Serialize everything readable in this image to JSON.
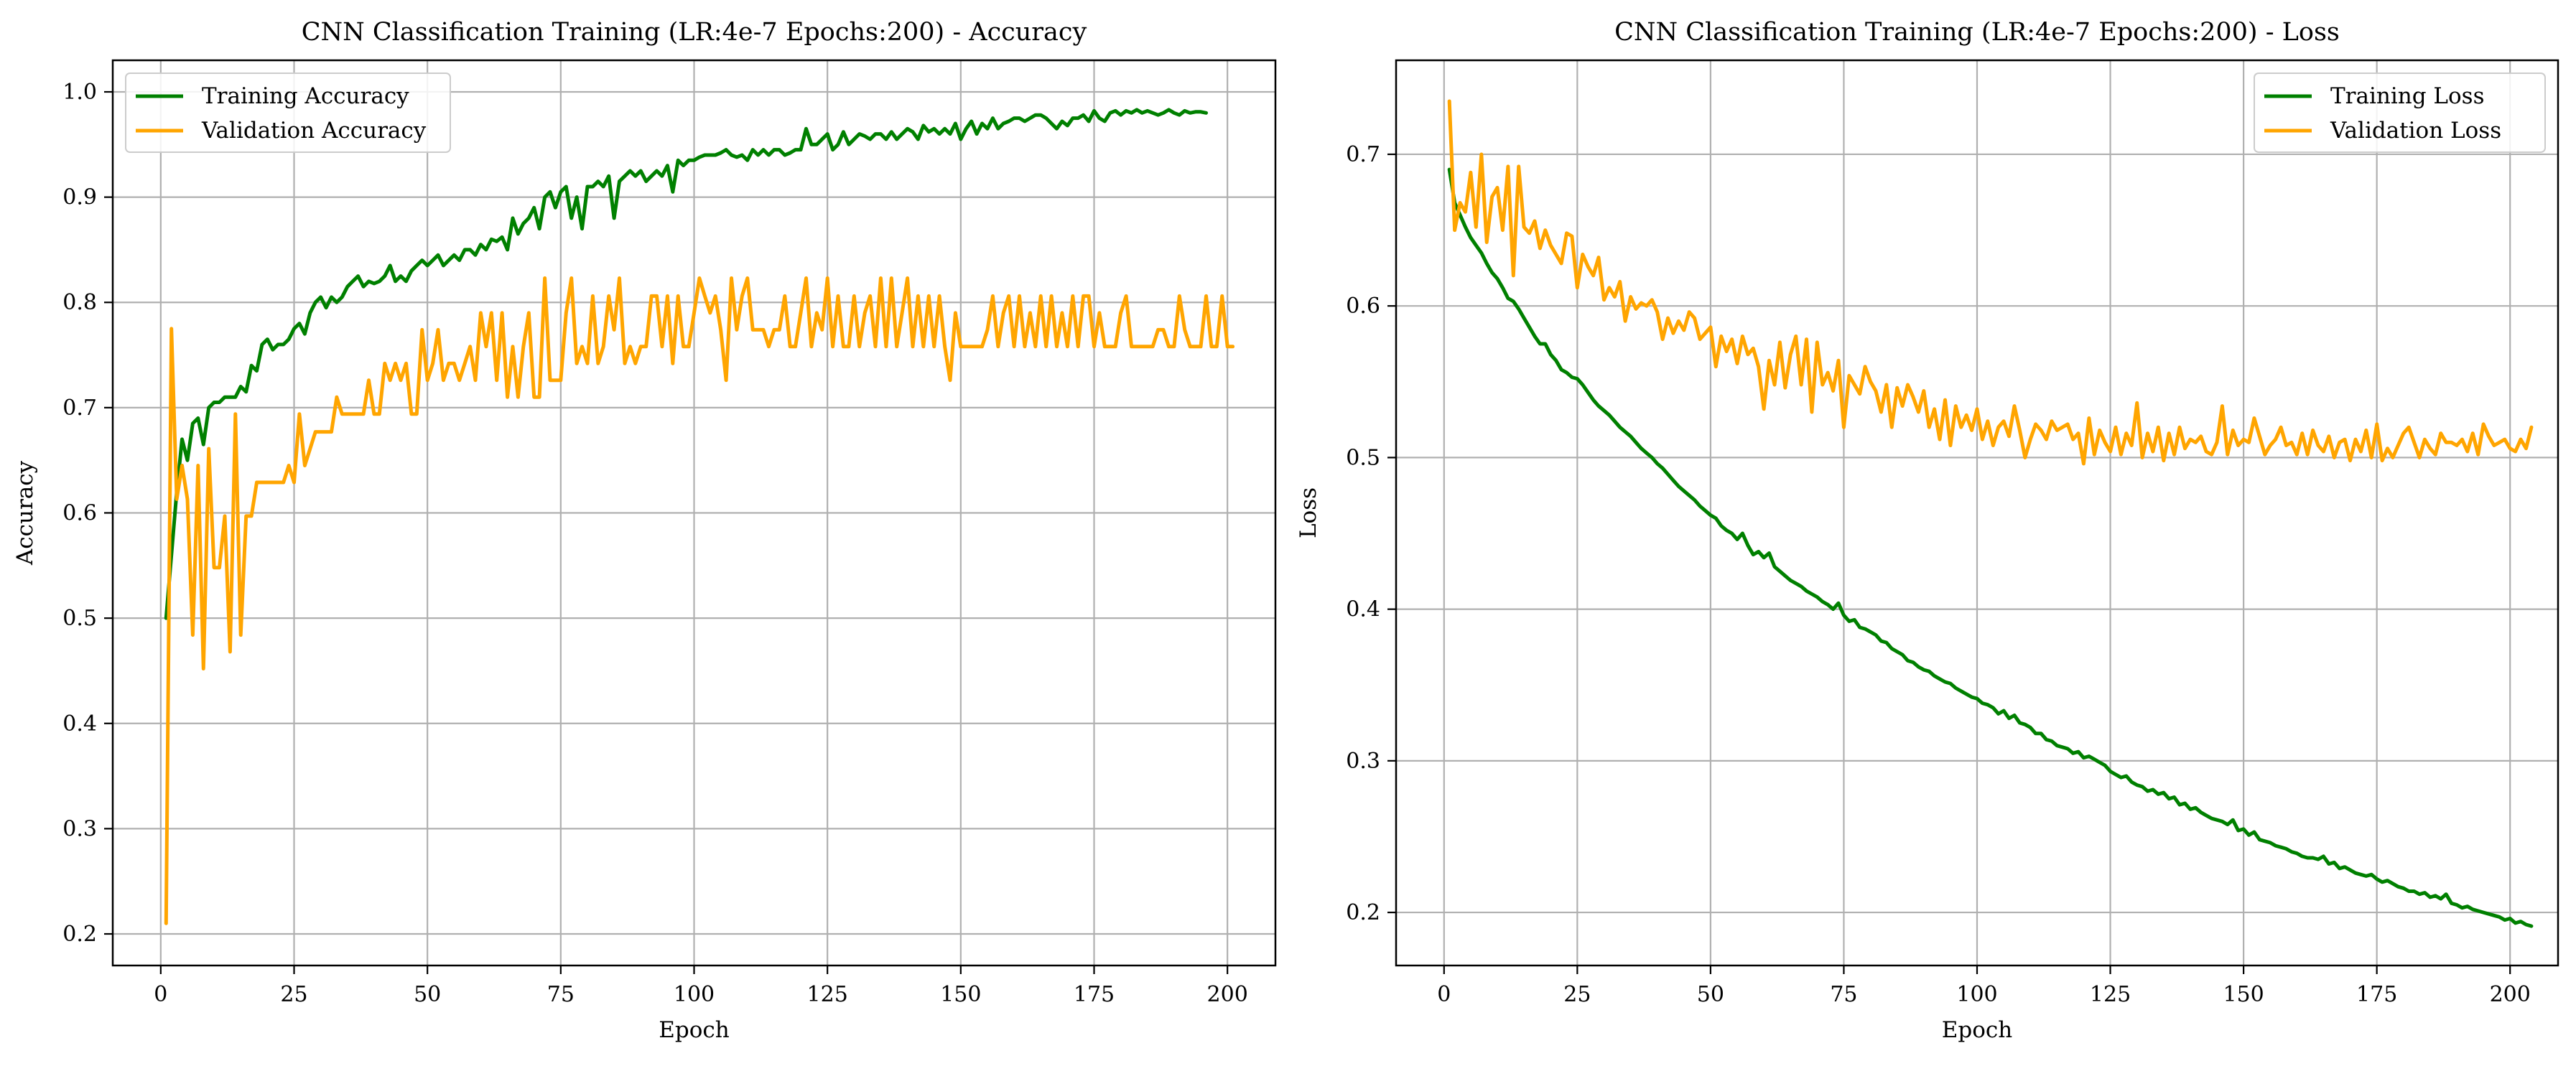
{
  "colors": {
    "training": "#008000",
    "validation": "#ffa500",
    "grid": "#b0b0b0",
    "axes": "#000000",
    "background": "#ffffff"
  },
  "chart_data": [
    {
      "type": "line",
      "title": "CNN Classification Training (LR:4e-7 Epochs:200) - Accuracy",
      "xlabel": "Epoch",
      "ylabel": "Accuracy",
      "xlim": [
        -9,
        209
      ],
      "ylim": [
        0.17,
        1.03
      ],
      "xticks": [
        0,
        25,
        50,
        75,
        100,
        125,
        150,
        175,
        200
      ],
      "yticks": [
        0.2,
        0.3,
        0.4,
        0.5,
        0.6,
        0.7,
        0.8,
        0.9,
        1.0
      ],
      "ytick_labels": [
        "0.2",
        "0.3",
        "0.4",
        "0.5",
        "0.6",
        "0.7",
        "0.8",
        "0.9",
        "1.0"
      ],
      "grid": true,
      "legend_position": "upper-left",
      "series": [
        {
          "name": "Training Accuracy",
          "color": "#008000",
          "x_start": 1,
          "values": [
            0.5,
            0.56,
            0.62,
            0.67,
            0.65,
            0.685,
            0.69,
            0.665,
            0.7,
            0.705,
            0.705,
            0.71,
            0.71,
            0.71,
            0.72,
            0.715,
            0.74,
            0.735,
            0.76,
            0.765,
            0.755,
            0.76,
            0.76,
            0.765,
            0.775,
            0.78,
            0.77,
            0.79,
            0.8,
            0.805,
            0.795,
            0.805,
            0.8,
            0.805,
            0.815,
            0.82,
            0.825,
            0.815,
            0.82,
            0.818,
            0.82,
            0.825,
            0.835,
            0.82,
            0.825,
            0.82,
            0.83,
            0.835,
            0.84,
            0.835,
            0.84,
            0.845,
            0.835,
            0.84,
            0.845,
            0.84,
            0.85,
            0.85,
            0.845,
            0.855,
            0.85,
            0.86,
            0.858,
            0.862,
            0.85,
            0.88,
            0.865,
            0.875,
            0.88,
            0.89,
            0.87,
            0.9,
            0.905,
            0.89,
            0.905,
            0.91,
            0.88,
            0.9,
            0.87,
            0.91,
            0.91,
            0.915,
            0.91,
            0.92,
            0.88,
            0.915,
            0.92,
            0.925,
            0.92,
            0.925,
            0.915,
            0.92,
            0.925,
            0.92,
            0.93,
            0.905,
            0.935,
            0.93,
            0.935,
            0.935,
            0.938,
            0.94,
            0.94,
            0.94,
            0.942,
            0.945,
            0.94,
            0.938,
            0.94,
            0.935,
            0.945,
            0.94,
            0.945,
            0.94,
            0.945,
            0.945,
            0.94,
            0.942,
            0.945,
            0.945,
            0.965,
            0.95,
            0.95,
            0.955,
            0.96,
            0.945,
            0.95,
            0.962,
            0.95,
            0.955,
            0.96,
            0.958,
            0.955,
            0.96,
            0.96,
            0.955,
            0.962,
            0.955,
            0.96,
            0.965,
            0.962,
            0.955,
            0.968,
            0.962,
            0.965,
            0.96,
            0.965,
            0.96,
            0.97,
            0.955,
            0.965,
            0.972,
            0.96,
            0.97,
            0.965,
            0.975,
            0.965,
            0.97,
            0.972,
            0.975,
            0.975,
            0.972,
            0.975,
            0.978,
            0.978,
            0.975,
            0.97,
            0.965,
            0.972,
            0.968,
            0.975,
            0.975,
            0.978,
            0.972,
            0.982,
            0.975,
            0.972,
            0.98,
            0.982,
            0.978,
            0.982,
            0.98,
            0.983,
            0.98,
            0.982,
            0.98,
            0.978,
            0.98,
            0.983,
            0.98,
            0.978,
            0.982,
            0.98,
            0.981,
            0.981,
            0.98
          ]
        },
        {
          "name": "Validation Accuracy",
          "color": "#ffa500",
          "x_start": 1,
          "values": [
            0.21,
            0.775,
            0.613,
            0.645,
            0.613,
            0.484,
            0.645,
            0.452,
            0.661,
            0.548,
            0.548,
            0.597,
            0.468,
            0.694,
            0.484,
            0.597,
            0.597,
            0.629,
            0.629,
            0.629,
            0.629,
            0.629,
            0.629,
            0.645,
            0.629,
            0.694,
            0.645,
            0.661,
            0.677,
            0.677,
            0.677,
            0.677,
            0.71,
            0.694,
            0.694,
            0.694,
            0.694,
            0.694,
            0.726,
            0.694,
            0.694,
            0.742,
            0.726,
            0.742,
            0.726,
            0.742,
            0.694,
            0.694,
            0.774,
            0.726,
            0.742,
            0.774,
            0.726,
            0.742,
            0.742,
            0.726,
            0.742,
            0.758,
            0.726,
            0.79,
            0.758,
            0.79,
            0.726,
            0.79,
            0.71,
            0.758,
            0.71,
            0.758,
            0.79,
            0.71,
            0.71,
            0.823,
            0.726,
            0.726,
            0.726,
            0.79,
            0.823,
            0.742,
            0.758,
            0.742,
            0.806,
            0.742,
            0.758,
            0.806,
            0.774,
            0.823,
            0.742,
            0.758,
            0.742,
            0.758,
            0.758,
            0.806,
            0.806,
            0.758,
            0.806,
            0.742,
            0.806,
            0.758,
            0.758,
            0.79,
            0.823,
            0.806,
            0.79,
            0.806,
            0.774,
            0.726,
            0.823,
            0.774,
            0.806,
            0.823,
            0.774,
            0.774,
            0.774,
            0.758,
            0.774,
            0.774,
            0.806,
            0.758,
            0.758,
            0.79,
            0.823,
            0.758,
            0.79,
            0.774,
            0.823,
            0.758,
            0.806,
            0.758,
            0.758,
            0.806,
            0.758,
            0.79,
            0.806,
            0.758,
            0.823,
            0.758,
            0.823,
            0.758,
            0.79,
            0.823,
            0.758,
            0.806,
            0.758,
            0.806,
            0.758,
            0.806,
            0.758,
            0.726,
            0.79,
            0.758,
            0.758,
            0.758,
            0.758,
            0.758,
            0.774,
            0.806,
            0.758,
            0.79,
            0.806,
            0.758,
            0.806,
            0.758,
            0.79,
            0.758,
            0.806,
            0.758,
            0.806,
            0.758,
            0.79,
            0.758,
            0.806,
            0.758,
            0.806,
            0.806,
            0.758,
            0.79,
            0.758,
            0.758,
            0.758,
            0.79,
            0.806,
            0.758,
            0.758,
            0.758,
            0.758,
            0.758,
            0.774,
            0.774,
            0.758,
            0.758,
            0.806,
            0.774,
            0.758,
            0.758,
            0.758,
            0.806,
            0.758,
            0.758,
            0.806,
            0.758,
            0.758
          ]
        }
      ]
    },
    {
      "type": "line",
      "title": "CNN Classification Training (LR:4e-7 Epochs:200) - Loss",
      "xlabel": "Epoch",
      "ylabel": "Loss",
      "xlim": [
        -9,
        209
      ],
      "ylim": [
        0.165,
        0.762
      ],
      "xticks": [
        0,
        25,
        50,
        75,
        100,
        125,
        150,
        175,
        200
      ],
      "yticks": [
        0.2,
        0.3,
        0.4,
        0.5,
        0.6,
        0.7
      ],
      "ytick_labels": [
        "0.2",
        "0.3",
        "0.4",
        "0.5",
        "0.6",
        "0.7"
      ],
      "grid": true,
      "legend_position": "upper-right",
      "series": [
        {
          "name": "Training Loss",
          "color": "#008000",
          "x_start": 1,
          "values": [
            0.69,
            0.668,
            0.66,
            0.652,
            0.645,
            0.64,
            0.635,
            0.628,
            0.622,
            0.618,
            0.612,
            0.605,
            0.603,
            0.598,
            0.592,
            0.586,
            0.58,
            0.575,
            0.575,
            0.568,
            0.564,
            0.558,
            0.556,
            0.553,
            0.552,
            0.548,
            0.543,
            0.538,
            0.534,
            0.531,
            0.528,
            0.524,
            0.52,
            0.517,
            0.514,
            0.51,
            0.506,
            0.503,
            0.5,
            0.496,
            0.493,
            0.489,
            0.485,
            0.481,
            0.478,
            0.475,
            0.472,
            0.468,
            0.465,
            0.462,
            0.46,
            0.455,
            0.452,
            0.45,
            0.446,
            0.45,
            0.442,
            0.436,
            0.438,
            0.434,
            0.437,
            0.428,
            0.425,
            0.422,
            0.419,
            0.417,
            0.415,
            0.412,
            0.41,
            0.408,
            0.405,
            0.403,
            0.4,
            0.404,
            0.396,
            0.392,
            0.393,
            0.388,
            0.387,
            0.385,
            0.383,
            0.379,
            0.378,
            0.374,
            0.372,
            0.37,
            0.366,
            0.365,
            0.362,
            0.36,
            0.359,
            0.356,
            0.354,
            0.352,
            0.351,
            0.348,
            0.346,
            0.344,
            0.342,
            0.341,
            0.338,
            0.337,
            0.335,
            0.331,
            0.333,
            0.328,
            0.33,
            0.325,
            0.324,
            0.322,
            0.318,
            0.318,
            0.314,
            0.313,
            0.31,
            0.309,
            0.308,
            0.305,
            0.306,
            0.302,
            0.303,
            0.301,
            0.299,
            0.297,
            0.293,
            0.291,
            0.289,
            0.29,
            0.286,
            0.284,
            0.283,
            0.28,
            0.281,
            0.278,
            0.279,
            0.275,
            0.276,
            0.271,
            0.272,
            0.268,
            0.269,
            0.266,
            0.264,
            0.262,
            0.261,
            0.26,
            0.258,
            0.261,
            0.254,
            0.255,
            0.251,
            0.253,
            0.248,
            0.247,
            0.246,
            0.244,
            0.243,
            0.242,
            0.24,
            0.239,
            0.237,
            0.236,
            0.236,
            0.235,
            0.237,
            0.232,
            0.233,
            0.229,
            0.23,
            0.228,
            0.226,
            0.225,
            0.224,
            0.225,
            0.222,
            0.22,
            0.221,
            0.219,
            0.217,
            0.216,
            0.214,
            0.214,
            0.212,
            0.213,
            0.21,
            0.211,
            0.209,
            0.212,
            0.206,
            0.205,
            0.203,
            0.204,
            0.202,
            0.201,
            0.2,
            0.199,
            0.198,
            0.197,
            0.195,
            0.196,
            0.193,
            0.194,
            0.192,
            0.191
          ]
        },
        {
          "name": "Validation Loss",
          "color": "#ffa500",
          "x_start": 1,
          "values": [
            0.735,
            0.65,
            0.668,
            0.662,
            0.688,
            0.652,
            0.7,
            0.642,
            0.672,
            0.678,
            0.65,
            0.692,
            0.62,
            0.692,
            0.652,
            0.648,
            0.656,
            0.638,
            0.65,
            0.64,
            0.634,
            0.628,
            0.648,
            0.646,
            0.612,
            0.634,
            0.626,
            0.62,
            0.632,
            0.604,
            0.612,
            0.606,
            0.616,
            0.59,
            0.606,
            0.598,
            0.602,
            0.6,
            0.604,
            0.596,
            0.578,
            0.592,
            0.582,
            0.59,
            0.584,
            0.596,
            0.592,
            0.578,
            0.582,
            0.586,
            0.56,
            0.58,
            0.57,
            0.578,
            0.562,
            0.58,
            0.568,
            0.572,
            0.56,
            0.532,
            0.564,
            0.548,
            0.576,
            0.546,
            0.568,
            0.58,
            0.548,
            0.578,
            0.53,
            0.576,
            0.548,
            0.556,
            0.544,
            0.564,
            0.52,
            0.554,
            0.548,
            0.542,
            0.56,
            0.55,
            0.544,
            0.53,
            0.548,
            0.52,
            0.546,
            0.534,
            0.548,
            0.54,
            0.53,
            0.544,
            0.52,
            0.532,
            0.512,
            0.538,
            0.508,
            0.534,
            0.52,
            0.528,
            0.518,
            0.532,
            0.512,
            0.524,
            0.508,
            0.52,
            0.524,
            0.514,
            0.534,
            0.518,
            0.5,
            0.512,
            0.522,
            0.518,
            0.512,
            0.524,
            0.518,
            0.52,
            0.522,
            0.512,
            0.516,
            0.496,
            0.526,
            0.502,
            0.518,
            0.51,
            0.504,
            0.52,
            0.502,
            0.516,
            0.508,
            0.536,
            0.5,
            0.516,
            0.504,
            0.52,
            0.498,
            0.516,
            0.502,
            0.52,
            0.506,
            0.512,
            0.51,
            0.514,
            0.504,
            0.502,
            0.51,
            0.534,
            0.502,
            0.518,
            0.508,
            0.512,
            0.51,
            0.526,
            0.514,
            0.502,
            0.508,
            0.512,
            0.52,
            0.508,
            0.51,
            0.502,
            0.516,
            0.502,
            0.518,
            0.508,
            0.504,
            0.514,
            0.5,
            0.51,
            0.512,
            0.498,
            0.512,
            0.504,
            0.518,
            0.5,
            0.522,
            0.498,
            0.506,
            0.5,
            0.508,
            0.516,
            0.52,
            0.51,
            0.5,
            0.512,
            0.506,
            0.502,
            0.516,
            0.51,
            0.51,
            0.508,
            0.512,
            0.504,
            0.516,
            0.502,
            0.522,
            0.514,
            0.508,
            0.51,
            0.512,
            0.506,
            0.504,
            0.512,
            0.506,
            0.52
          ]
        }
      ]
    }
  ]
}
